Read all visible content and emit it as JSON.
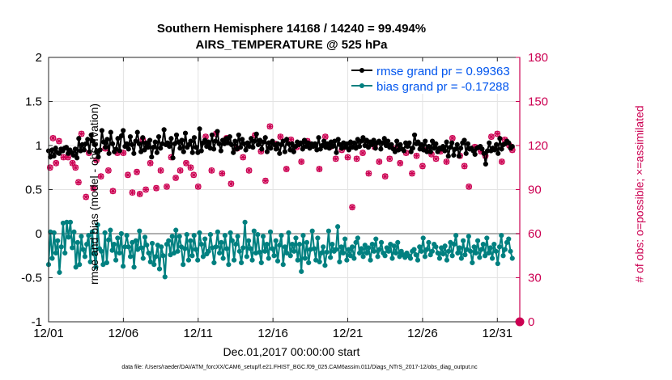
{
  "chart_data": {
    "type": "line",
    "title": "Southern Hemisphere 14168 / 14240 = 99.494%",
    "subtitle": "AIRS_TEMPERATURE @ 525 hPa",
    "xlabel": "Dec.01,2017 00:00:00 start",
    "ylabel": "rmse and bias (model - observation)",
    "y2label": "# of obs: o=possible; ×=assimilated",
    "footnote": "data file: /Users/raeder/DAI/ATM_forcXX/CAM6_setup/f.e21.FHIST_BGC.f09_025.CAM6assim.011/Diags_NTrS_2017-12/obs_diag_output.nc",
    "xlim": [
      0,
      31.5
    ],
    "ylim": [
      -1,
      2
    ],
    "y2lim": [
      0,
      180
    ],
    "x_ticks": [
      0,
      5,
      10,
      15,
      20,
      25,
      30
    ],
    "x_tick_labels": [
      "12/01",
      "12/06",
      "12/11",
      "12/16",
      "12/21",
      "12/26",
      "12/31"
    ],
    "y_ticks": [
      -1,
      -0.5,
      0,
      0.5,
      1,
      1.5,
      2
    ],
    "y_tick_labels": [
      "-1",
      "-0.5",
      "0",
      "0.5",
      "1",
      "1.5",
      "2"
    ],
    "y2_ticks": [
      0,
      30,
      60,
      90,
      120,
      150,
      180
    ],
    "y2_tick_labels": [
      "0",
      "30",
      "60",
      "90",
      "120",
      "150",
      "180"
    ],
    "grid": true,
    "legend_position": "top-right",
    "reference_line": 0,
    "colors": {
      "rmse": "#000000",
      "bias": "#008080",
      "obs": "#cc0052",
      "zero_line": "#b0b0b0",
      "legend_text": "#0055ee"
    },
    "series": [
      {
        "name": "rmse grand pr = 0.99363",
        "axis": "left",
        "marker": "circle",
        "values": [
          0.94,
          0.87,
          0.95,
          0.88,
          0.97,
          0.92,
          0.91,
          0.96,
          0.94,
          0.97,
          0.98,
          0.91,
          0.95,
          0.92,
          0.89,
          0.96,
          0.86,
          1.08,
          0.94,
          1.01,
          0.95,
          1.02,
          1.07,
          0.93,
          1.12,
          1.05,
          1.01,
          0.93,
          0.87,
          0.95,
          1.17,
          1.04,
          0.98,
          1.07,
          0.91,
          1.15,
          1.02,
          0.93,
          0.96,
          1.08,
          0.94,
          1.11,
          1.17,
          0.99,
          1.02,
          0.96,
          1.1,
          1.01,
          0.91,
          1.05,
          1.15,
          1.02,
          0.93,
          1.09,
          0.95,
          1.03,
          0.98,
          1.06,
          0.87,
          0.98,
          1.04,
          0.92,
          1.1,
          0.97,
          1.02,
          1.18,
          1.01,
          1.03,
          0.99,
          1.08,
          0.86,
          1.02,
          1.12,
          1.04,
          0.97,
          1.06,
          0.93,
          1.14,
          0.98,
          1.01,
          1.05,
          0.92,
          1.09,
          0.98,
          0.92,
          1.19,
          0.94,
          1.03,
          1.06,
          0.99,
          1.04,
          0.97,
          1.12,
          0.96,
          1.05,
          1.16,
          1.02,
          0.94,
          1.06,
          1.02,
          1.08,
          1.03,
          1.1,
          1.01,
          0.92,
          1.05,
          0.96,
          1.12,
          0.98,
          1.07,
          1.02,
          0.95,
          1.03,
          0.99,
          1.08,
          0.98,
          1.05,
          1.13,
          1.01,
          1.06,
          0.96,
          1.04,
          1.09,
          0.93,
          1.03,
          0.97,
          1.05,
          1.01,
          0.96,
          1.02,
          0.91,
          1.01,
          1.05,
          0.93,
          1.07,
          1.02,
          0.95,
          1.02,
          0.93,
          0.99,
          1.04,
          1.01,
          1.03,
          0.96,
          1.06,
          0.99,
          1.03,
          0.97,
          1.02,
          0.99,
          1.02,
          0.95,
          1.09,
          0.96,
          1.0,
          1.05,
          0.98,
          1.02,
          0.97,
          1.04,
          0.99,
          1.05,
          0.92,
          1.07,
          1.01,
          0.97,
          1.03,
          0.98,
          1.02,
          0.95,
          1.04,
          0.98,
          1.03,
          0.97,
          1.07,
          0.99,
          1.05,
          1.09,
          1.0,
          1.06,
          0.98,
          1.04,
          1.01,
          1.06,
          0.97,
          1.03,
          1.05,
          0.96,
          1.03,
          1.08,
          1.0,
          1.05,
          0.98,
          1.01,
          0.96,
          0.93,
          1.05,
          0.95,
          1.01,
          0.96,
          0.94,
          1.03,
          0.99,
          1.03,
          0.93,
          0.97,
          1.12,
          1.02,
          1.04,
          0.96,
          1.01,
          0.95,
          1.05,
          0.93,
          0.99,
          0.93,
          1.05,
          0.97,
          1.02,
          0.93,
          0.97,
          0.96,
          0.99,
          0.94,
          1.04,
          0.88,
          0.98,
          1.03,
          0.89,
          0.96,
          1.01,
          0.88,
          0.97,
          1.03,
          1.06,
          0.91,
          1.02,
          0.96,
          0.97,
          0.94,
          0.9,
          0.97,
          0.98,
          0.99,
          0.96,
          0.91,
          0.79,
          0.94,
          1.03,
          0.94,
          0.97,
          0.95,
          1.01,
          0.91,
          1.08,
          0.96,
          1.01,
          1.02,
          1.05,
          1.03,
          0.97,
          0.99
        ]
      },
      {
        "name": "bias grand pr = -0.17288",
        "axis": "left",
        "marker": "circle",
        "values": [
          -0.35,
          0.02,
          -0.28,
          0.01,
          -0.22,
          -0.08,
          -0.44,
          -0.15,
          0.12,
          -0.22,
          0.13,
          -0.04,
          0.13,
          -0.16,
          0.02,
          -0.38,
          -0.1,
          -0.35,
          -0.03,
          -0.18,
          -0.26,
          -0.12,
          -0.02,
          -0.32,
          0.02,
          -0.23,
          -0.38,
          0.1,
          -0.17,
          -0.2,
          -0.35,
          0.01,
          -0.33,
          -0.07,
          0.04,
          -0.19,
          -0.12,
          -0.3,
          -0.05,
          -0.22,
          0.0,
          -0.37,
          -0.15,
          -0.02,
          -0.15,
          -0.26,
          -0.1,
          -0.38,
          -0.08,
          -0.18,
          0.03,
          -0.16,
          -0.28,
          -0.04,
          -0.13,
          -0.22,
          -0.32,
          -0.11,
          -0.35,
          -0.26,
          -0.13,
          -0.4,
          -0.15,
          -0.25,
          -0.49,
          -0.12,
          -0.08,
          -0.24,
          -0.03,
          -0.22,
          0.04,
          -0.2,
          -0.03,
          -0.15,
          -0.35,
          -0.17,
          -0.01,
          -0.3,
          -0.08,
          -0.25,
          -0.02,
          -0.18,
          -0.3,
          0.01,
          -0.12,
          -0.26,
          -0.06,
          -0.23,
          -0.2,
          -0.01,
          -0.16,
          -0.33,
          -0.15,
          0.02,
          -0.22,
          -0.1,
          -0.28,
          -0.02,
          -0.17,
          -0.35,
          0.01,
          -0.08,
          -0.3,
          -0.12,
          -0.03,
          -0.2,
          -0.33,
          -0.16,
          0.13,
          -0.26,
          -0.08,
          -0.17,
          -0.3,
          0.03,
          -0.22,
          -0.01,
          -0.21,
          -0.33,
          -0.03,
          -0.2,
          -0.12,
          -0.28,
          0.02,
          -0.17,
          -0.25,
          -0.08,
          -0.31,
          -0.13,
          -0.02,
          -0.35,
          -0.15,
          -0.22,
          0.01,
          -0.25,
          -0.12,
          -0.2,
          -0.05,
          -0.3,
          -0.12,
          -0.43,
          -0.02,
          -0.28,
          -0.1,
          -0.33,
          -0.18,
          0.03,
          -0.17,
          -0.3,
          -0.05,
          -0.32,
          -0.22,
          -0.15,
          -0.36,
          -0.21,
          0.03,
          -0.27,
          -0.12,
          -0.2,
          -0.18,
          0.08,
          -0.32,
          -0.15,
          -0.22,
          -0.06,
          -0.3,
          -0.18,
          -0.25,
          -0.15,
          -0.28,
          -0.1,
          -0.05,
          -0.22,
          -0.17,
          -0.26,
          -0.13,
          -0.22,
          -0.16,
          -0.3,
          -0.12,
          -0.2,
          -0.06,
          -0.26,
          -0.18,
          -0.1,
          -0.22,
          -0.25,
          -0.16,
          -0.2,
          -0.12,
          -0.28,
          -0.14,
          -0.22,
          -0.1,
          -0.26,
          -0.2,
          -0.24,
          -0.27,
          -0.22,
          -0.25,
          -0.28,
          -0.2,
          -0.18,
          -0.24,
          -0.3,
          -0.15,
          -0.2,
          -0.05,
          -0.26,
          -0.18,
          -0.1,
          -0.24,
          -0.2,
          -0.12,
          -0.15,
          -0.22,
          -0.28,
          -0.16,
          -0.23,
          -0.14,
          -0.3,
          -0.2,
          -0.1,
          -0.25,
          -0.12,
          -0.02,
          -0.22,
          -0.16,
          -0.28,
          -0.08,
          -0.24,
          -0.18,
          -0.03,
          -0.2,
          -0.33,
          -0.15,
          -0.22,
          -0.08,
          -0.27,
          -0.18,
          -0.12,
          -0.25,
          -0.05,
          -0.22,
          -0.16,
          -0.28,
          -0.12,
          -0.2,
          -0.34,
          -0.15,
          -0.02,
          -0.25,
          -0.18,
          -0.1,
          -0.06,
          -0.2,
          -0.28
        ]
      },
      {
        "name": "# of obs possible/assimilated",
        "axis": "right",
        "marker": "circle+cross",
        "points": [
          [
            0.1,
            105
          ],
          [
            0.3,
            125
          ],
          [
            0.5,
            108
          ],
          [
            0.7,
            123
          ],
          [
            1.0,
            112
          ],
          [
            1.3,
            112
          ],
          [
            1.6,
            108
          ],
          [
            1.8,
            105
          ],
          [
            2.0,
            95
          ],
          [
            2.2,
            128
          ],
          [
            2.5,
            85
          ],
          [
            2.7,
            115
          ],
          [
            3.0,
            91
          ],
          [
            3.2,
            110
          ],
          [
            3.5,
            99
          ],
          [
            3.8,
            118
          ],
          [
            4.0,
            103
          ],
          [
            4.3,
            89
          ],
          [
            4.6,
            115
          ],
          [
            5.0,
            115
          ],
          [
            5.3,
            100
          ],
          [
            5.6,
            88
          ],
          [
            5.9,
            102
          ],
          [
            6.1,
            87
          ],
          [
            6.3,
            124
          ],
          [
            6.5,
            90
          ],
          [
            6.8,
            108
          ],
          [
            7.2,
            91
          ],
          [
            7.5,
            103
          ],
          [
            7.9,
            92
          ],
          [
            8.2,
            112
          ],
          [
            8.5,
            98
          ],
          [
            8.8,
            103
          ],
          [
            9.2,
            108
          ],
          [
            9.5,
            105
          ],
          [
            9.7,
            100
          ],
          [
            10.0,
            92
          ],
          [
            10.5,
            126
          ],
          [
            10.9,
            103
          ],
          [
            11.2,
            128
          ],
          [
            11.6,
            101
          ],
          [
            11.9,
            125
          ],
          [
            12.2,
            94
          ],
          [
            12.6,
            118
          ],
          [
            13.0,
            112
          ],
          [
            13.4,
            103
          ],
          [
            13.8,
            127
          ],
          [
            14.2,
            116
          ],
          [
            14.5,
            96
          ],
          [
            14.8,
            133
          ],
          [
            15.2,
            121
          ],
          [
            15.5,
            126
          ],
          [
            15.9,
            104
          ],
          [
            16.2,
            124
          ],
          [
            16.6,
            119
          ],
          [
            16.9,
            109
          ],
          [
            17.3,
            123
          ],
          [
            17.7,
            120
          ],
          [
            18.1,
            104
          ],
          [
            18.5,
            126
          ],
          [
            18.8,
            119
          ],
          [
            19.2,
            111
          ],
          [
            19.6,
            117
          ],
          [
            20.0,
            112
          ],
          [
            20.3,
            78
          ],
          [
            20.6,
            111
          ],
          [
            21.0,
            115
          ],
          [
            21.4,
            101
          ],
          [
            21.8,
            119
          ],
          [
            22.1,
            109
          ],
          [
            22.5,
            99
          ],
          [
            22.8,
            111
          ],
          [
            23.2,
            118
          ],
          [
            23.5,
            108
          ],
          [
            23.9,
            115
          ],
          [
            24.3,
            101
          ],
          [
            24.6,
            113
          ],
          [
            25.0,
            106
          ],
          [
            25.3,
            117
          ],
          [
            25.6,
            114
          ],
          [
            25.9,
            111
          ],
          [
            26.2,
            116
          ],
          [
            26.6,
            109
          ],
          [
            27.0,
            125
          ],
          [
            27.5,
            113
          ],
          [
            27.8,
            106
          ],
          [
            28.1,
            92
          ],
          [
            28.5,
            119
          ],
          [
            28.9,
            116
          ],
          [
            29.2,
            113
          ],
          [
            29.6,
            126
          ],
          [
            30.0,
            128
          ],
          [
            30.3,
            109
          ],
          [
            30.5,
            124
          ],
          [
            30.8,
            120
          ],
          [
            31.0,
            117
          ]
        ]
      }
    ],
    "right_axis_marker": {
      "x": 31.5,
      "y2": 0
    }
  }
}
